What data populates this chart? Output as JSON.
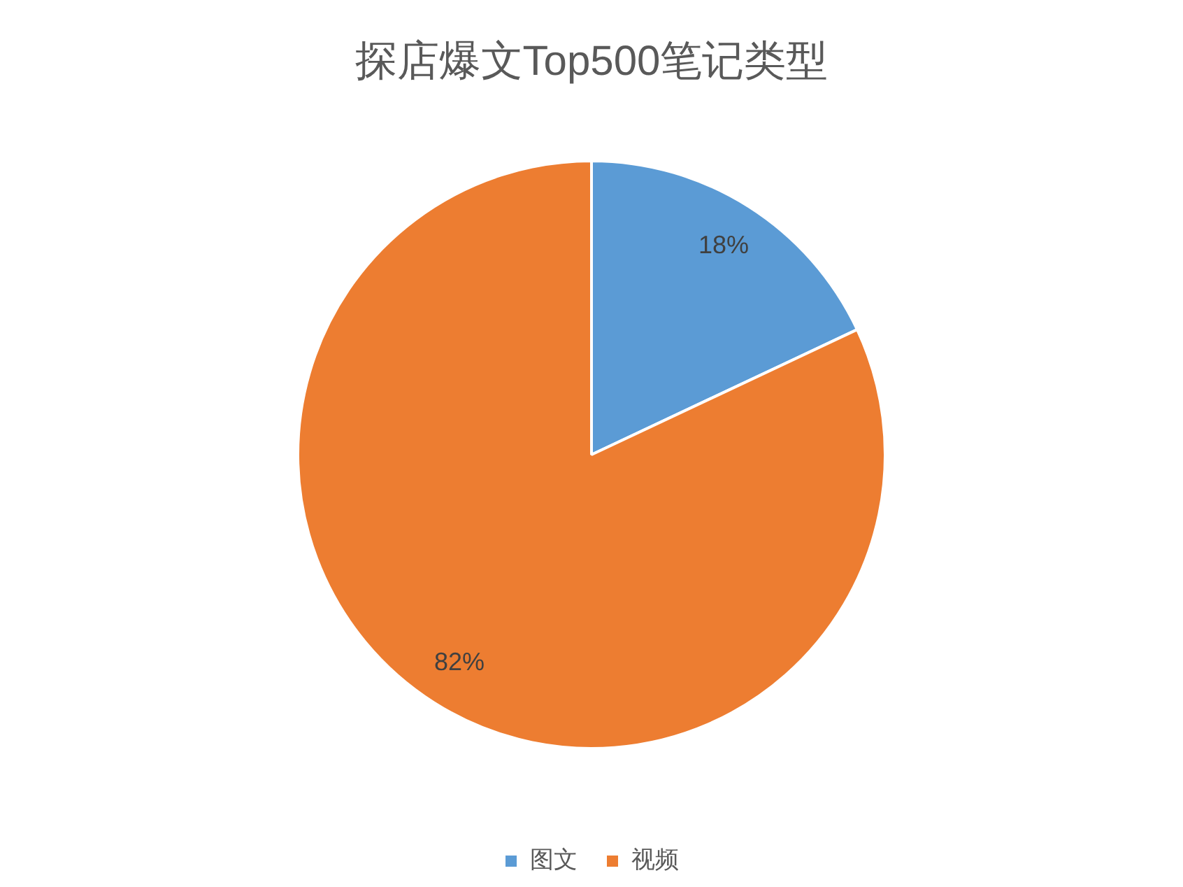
{
  "chart_data": {
    "type": "pie",
    "title": "探店爆文Top500笔记类型",
    "categories": [
      "图文",
      "视频"
    ],
    "values": [
      18,
      82
    ],
    "colors": [
      "#5b9bd5",
      "#ed7d31"
    ],
    "value_labels": [
      "18%",
      "82%"
    ],
    "legend": "bottom"
  }
}
